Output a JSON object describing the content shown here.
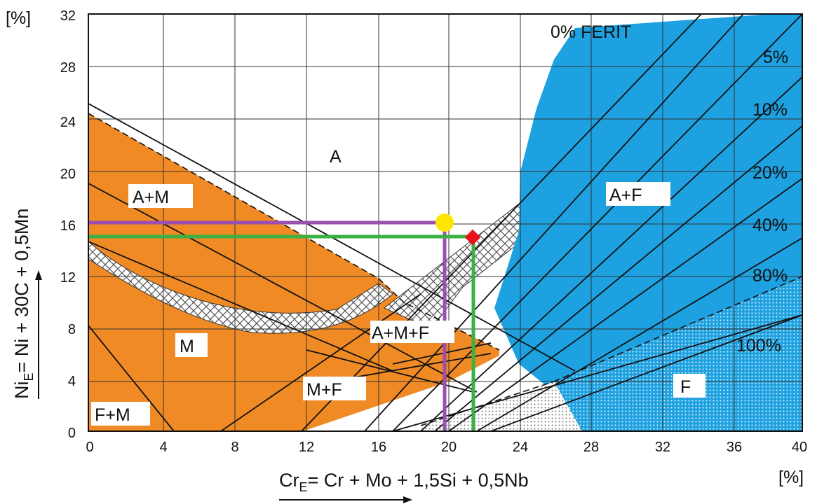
{
  "axes": {
    "y_unit": "[%]",
    "x_unit": "[%]",
    "x_title_main": "Cr",
    "x_title_sub": "E",
    "x_title_rest": "= Cr + Mo + 1,5Si + 0,5Nb",
    "y_title_main": "Ni",
    "y_title_sub": "E",
    "y_title_rest": "= Ni + 30C + 0,5Mn"
  },
  "regions": {
    "a": "A",
    "a_m": "A+M",
    "m": "M",
    "f_m": "F+M",
    "m_f": "M+F",
    "a_m_f": "A+M+F",
    "a_f": "A+F",
    "f": "F"
  },
  "ferrite_lines": {
    "zero": "0% FERIT",
    "p5": "5%",
    "p10": "10%",
    "p20": "20%",
    "p40": "40%",
    "p80": "80%",
    "p100": "100%"
  },
  "colors": {
    "martensite_region": "#f08a24",
    "ferrite_region": "#1da1e0",
    "purple_marker": "#9b4fb0",
    "green_marker": "#3cb043",
    "yellow_point": "#ffe600",
    "red_point": "#e8121a"
  },
  "chart_data": {
    "type": "scatter",
    "xlabel": "CrE = Cr + Mo + 1,5Si + 0,5Nb",
    "ylabel": "NiE = Ni + 30C + 0,5Mn",
    "xlim": [
      0,
      40
    ],
    "ylim": [
      0,
      32
    ],
    "x_ticks": [
      0,
      4,
      8,
      12,
      16,
      20,
      24,
      28,
      32,
      36,
      40
    ],
    "y_ticks": [
      0,
      4,
      8,
      12,
      16,
      20,
      24,
      28,
      32
    ],
    "grid": true,
    "points": [
      {
        "color": "yellow",
        "x": 19.8,
        "y": 16.2
      },
      {
        "color": "red",
        "x": 21.3,
        "y": 15.1
      }
    ],
    "markers": [
      {
        "color": "purple",
        "x": 19.8,
        "y": 16.2
      },
      {
        "color": "green",
        "x": 21.3,
        "y": 15.1
      }
    ]
  }
}
